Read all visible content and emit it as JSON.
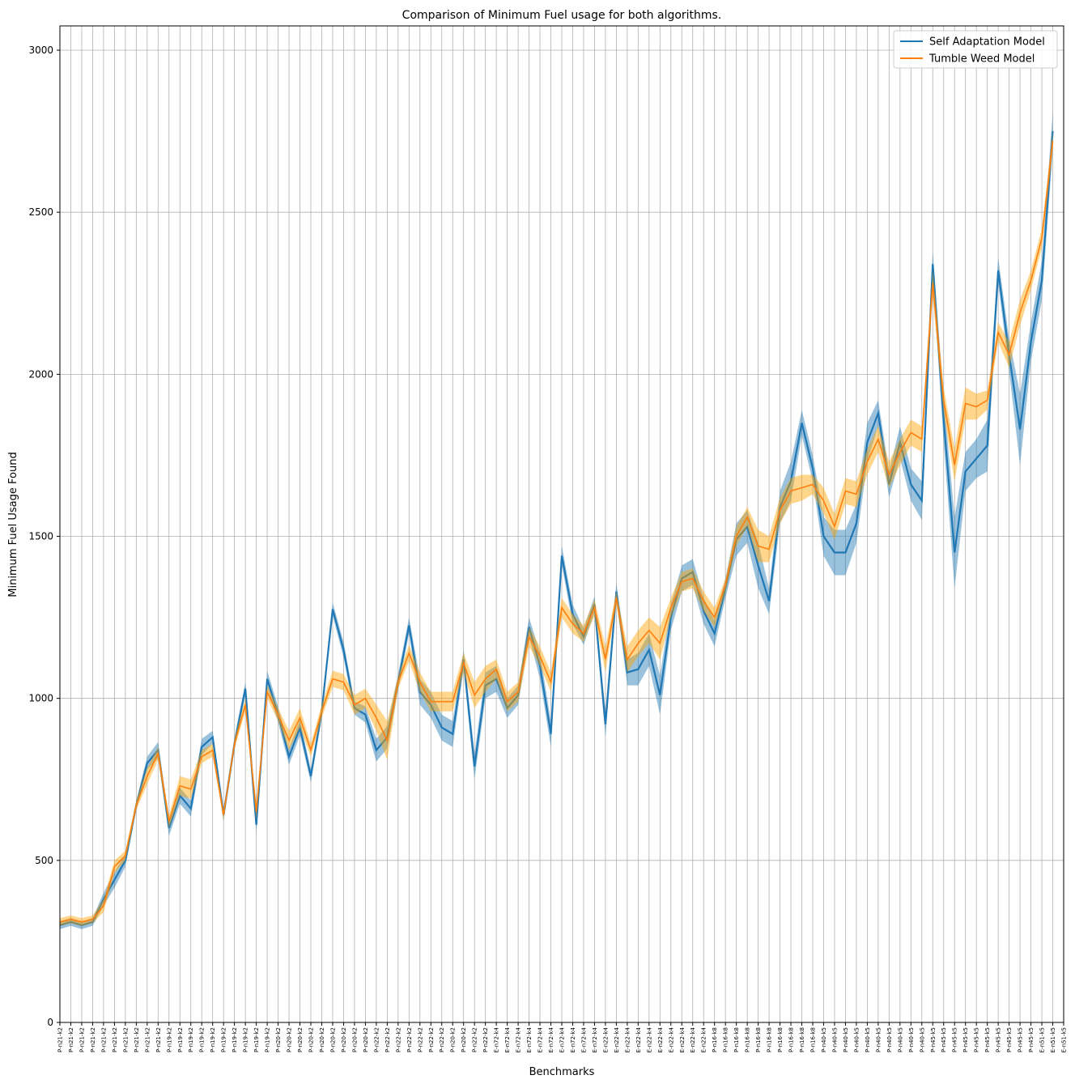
{
  "chart_data": {
    "type": "line",
    "title": "Comparison of Minimum Fuel usage for both algorithms.",
    "x_label": "Benchmarks",
    "y_label": "Minimum Fuel Usage Found",
    "categories": [
      "P-n21-k2",
      "P-n21-k2",
      "P-n21-k2",
      "P-n21-k2",
      "P-n21-k2",
      "P-n21-k2",
      "P-n21-k2",
      "P-n21-k2",
      "P-n21-k2",
      "P-n21-k2",
      "P-n19-k2",
      "P-n19-k2",
      "P-n19-k2",
      "P-n19-k2",
      "P-n19-k2",
      "P-n19-k2",
      "P-n19-k2",
      "P-n19-k2",
      "P-n19-k2",
      "P-n19-k2",
      "P-n20-k2",
      "P-n20-k2",
      "P-n20-k2",
      "P-n20-k2",
      "P-n20-k2",
      "P-n20-k2",
      "P-n20-k2",
      "P-n20-k2",
      "P-n20-k2",
      "P-n22-k2",
      "P-n22-k2",
      "P-n22-k2",
      "P-n22-k2",
      "P-n22-k2",
      "P-n22-k2",
      "P-n22-k2",
      "P-n20-k2",
      "P-n20-k2",
      "P-n22-k2",
      "P-n22-k2",
      "E-n72-k4",
      "E-n72-k4",
      "E-n72-k4",
      "E-n72-k4",
      "E-n72-k4",
      "E-n72-k4",
      "E-n72-k4",
      "E-n72-k4",
      "E-n72-k4",
      "E-n72-k4",
      "E-n22-k4",
      "E-n22-k4",
      "E-n22-k4",
      "E-n22-k4",
      "E-n22-k4",
      "E-n22-k4",
      "E-n22-k4",
      "E-n22-k4",
      "E-n22-k4",
      "E-n22-k4",
      "P-n16-k8",
      "P-n16-k8",
      "P-n16-k8",
      "P-n16-k8",
      "P-n16-k8",
      "P-n16-k8",
      "P-n16-k8",
      "P-n16-k8",
      "P-n16-k8",
      "P-n16-k8",
      "P-n40-k5",
      "P-n40-k5",
      "P-n40-k5",
      "P-n40-k5",
      "P-n40-k5",
      "P-n40-k5",
      "P-n40-k5",
      "P-n40-k5",
      "P-n40-k5",
      "P-n40-k5",
      "P-n45-k5",
      "P-n45-k5",
      "P-n45-k5",
      "P-n45-k5",
      "P-n45-k5",
      "P-n45-k5",
      "P-n45-k5",
      "P-n45-k5",
      "P-n45-k5",
      "P-n45-k5",
      "E-n51-k5",
      "E-n51-k5",
      "E-n51-k5"
    ],
    "series": [
      {
        "name": "Self Adaptation Model",
        "color": "#1f77b4",
        "band_color": "#1f77b4",
        "values": [
          300,
          310,
          300,
          310,
          380,
          440,
          500,
          670,
          800,
          840,
          600,
          700,
          660,
          850,
          880,
          640,
          860,
          1030,
          610,
          1060,
          950,
          820,
          910,
          760,
          960,
          1275,
          1150,
          970,
          950,
          840,
          880,
          1050,
          1225,
          1020,
          980,
          910,
          890,
          1120,
          790,
          1040,
          1060,
          970,
          1010,
          1220,
          1100,
          890,
          1440,
          1260,
          1190,
          1290,
          920,
          1330,
          1080,
          1090,
          1150,
          1010,
          1250,
          1370,
          1390,
          1270,
          1200,
          1340,
          1490,
          1530,
          1410,
          1300,
          1590,
          1670,
          1850,
          1710,
          1500,
          1450,
          1450,
          1540,
          1790,
          1880,
          1660,
          1790,
          1660,
          1610,
          2340,
          1860,
          1450,
          1700,
          1740,
          1780,
          2320,
          2060,
          1830,
          2100,
          2290,
          2750,
          null
        ],
        "errors": [
          12,
          12,
          12,
          12,
          20,
          25,
          20,
          15,
          20,
          25,
          25,
          25,
          25,
          25,
          20,
          20,
          20,
          20,
          25,
          25,
          25,
          25,
          25,
          20,
          20,
          20,
          25,
          20,
          25,
          35,
          35,
          25,
          25,
          40,
          40,
          40,
          40,
          30,
          40,
          40,
          40,
          30,
          30,
          30,
          40,
          40,
          30,
          30,
          25,
          25,
          40,
          25,
          40,
          50,
          50,
          60,
          40,
          40,
          40,
          40,
          40,
          30,
          50,
          50,
          70,
          40,
          50,
          60,
          40,
          40,
          60,
          70,
          70,
          60,
          60,
          40,
          40,
          50,
          50,
          60,
          40,
          70,
          110,
          60,
          60,
          80,
          40,
          50,
          110,
          60,
          60,
          60,
          null
        ]
      },
      {
        "name": "Tumble Weed Model",
        "color": "#ff7f0e",
        "band_color": "#ffa500",
        "values": [
          310,
          318,
          310,
          318,
          360,
          480,
          515,
          670,
          760,
          830,
          620,
          730,
          720,
          820,
          840,
          640,
          860,
          980,
          650,
          1020,
          950,
          870,
          940,
          840,
          960,
          1060,
          1050,
          980,
          1000,
          940,
          870,
          1050,
          1140,
          1050,
          990,
          990,
          990,
          1110,
          1010,
          1060,
          1090,
          990,
          1020,
          1190,
          1130,
          1050,
          1280,
          1230,
          1200,
          1280,
          1120,
          1310,
          1120,
          1170,
          1210,
          1170,
          1280,
          1360,
          1370,
          1300,
          1250,
          1350,
          1500,
          1560,
          1470,
          1460,
          1580,
          1640,
          1650,
          1660,
          1610,
          1530,
          1640,
          1630,
          1730,
          1800,
          1690,
          1760,
          1820,
          1800,
          2280,
          1920,
          1720,
          1910,
          1900,
          1920,
          2130,
          2060,
          2190,
          2290,
          2420,
          2720,
          null
        ],
        "errors": [
          12,
          12,
          12,
          12,
          20,
          20,
          15,
          15,
          25,
          20,
          20,
          30,
          30,
          20,
          20,
          15,
          15,
          20,
          25,
          20,
          20,
          30,
          30,
          20,
          20,
          25,
          25,
          30,
          30,
          40,
          60,
          20,
          25,
          30,
          30,
          30,
          30,
          30,
          40,
          40,
          30,
          30,
          30,
          30,
          30,
          30,
          30,
          30,
          25,
          25,
          40,
          20,
          40,
          40,
          40,
          50,
          30,
          30,
          30,
          30,
          30,
          20,
          30,
          30,
          50,
          40,
          40,
          40,
          40,
          30,
          40,
          40,
          40,
          40,
          40,
          40,
          40,
          40,
          40,
          40,
          40,
          40,
          50,
          50,
          40,
          30,
          30,
          40,
          40,
          30,
          30,
          30,
          null
        ]
      }
    ],
    "ylim": [
      0,
      3075
    ],
    "yticks": [
      0,
      500,
      1000,
      1500,
      2000,
      2500,
      3000
    ],
    "grid": true,
    "legend_position": "upper right"
  }
}
